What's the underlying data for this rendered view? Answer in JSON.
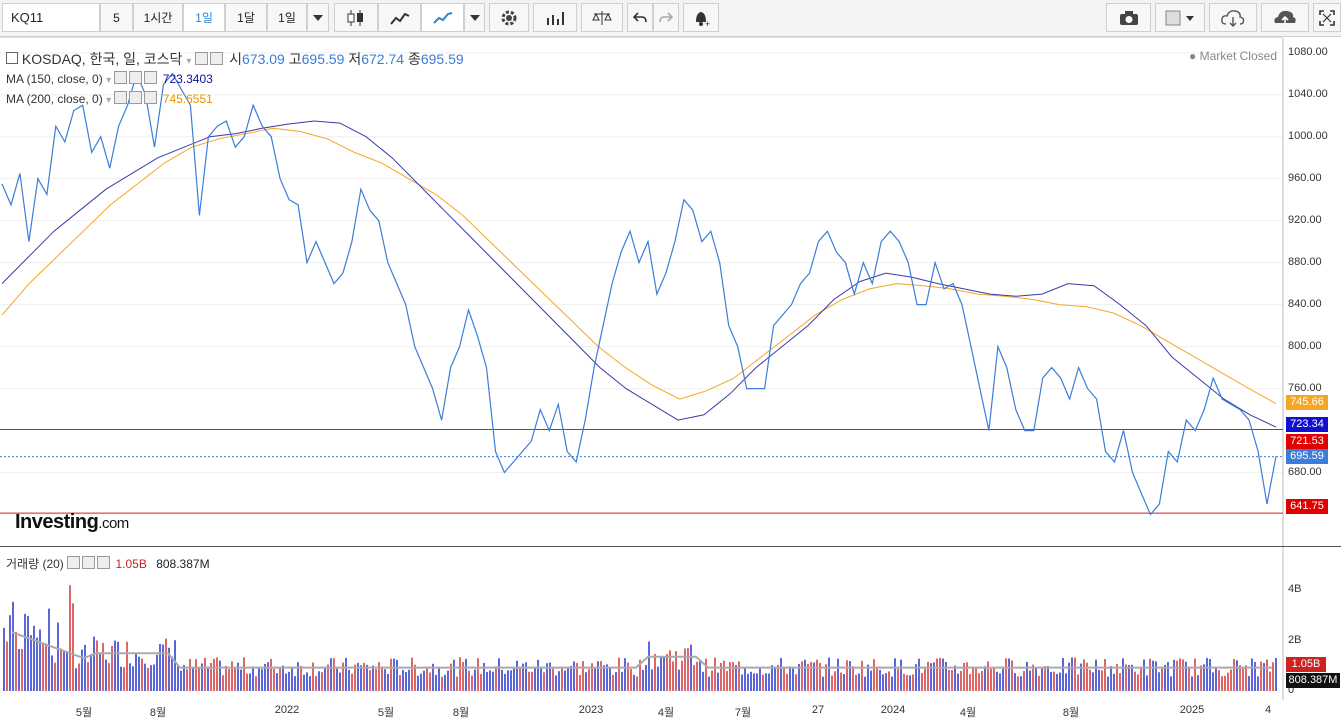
{
  "toolbar": {
    "symbol": "KQ11",
    "interval_5": "5",
    "interval_1h": "1시간",
    "interval_1d": "1일",
    "interval_1m": "1달",
    "interval_1d2": "1일"
  },
  "legend": {
    "title": "KOSDAQ, 한국, 일, 코스닥",
    "open_label": "시",
    "open": "673.09",
    "high_label": "고",
    "high": "695.59",
    "low_label": "저",
    "low": "672.74",
    "close_label": "종",
    "close": "695.59",
    "ma150_label": "MA (150, close, 0)",
    "ma150": "723.3403",
    "ma200_label": "MA (200, close, 0)",
    "ma200": "745.6551",
    "market_status": "Market Closed"
  },
  "volume_legend": {
    "label": "거래량 (20)",
    "value": "1.05B",
    "ma": "808.387M"
  },
  "logo": {
    "main": "Investing",
    "suffix": ".com"
  },
  "colors": {
    "price": "#3b7dd8",
    "ma150": "#3a3aa8",
    "ma200": "#f5a623",
    "line_red": "#d42020",
    "up": "#e06666",
    "down": "#5b67d8"
  },
  "chart_data": {
    "type": "line",
    "y_ticks": [
      1080,
      1040,
      1000,
      960,
      920,
      880,
      840,
      800,
      760,
      680
    ],
    "ylim": [
      610,
      1095
    ],
    "x_ticks": [
      "5월",
      "8월",
      "2022",
      "5월",
      "8월",
      "2023",
      "4월",
      "7월",
      "27",
      "2024",
      "4월",
      "8월",
      "2025",
      "4"
    ],
    "price_tags": {
      "ma200": "745.66",
      "ma150": "723.34",
      "hline1": "721.53",
      "last": "695.59",
      "hline2": "641.75"
    },
    "hlines": [
      721.53,
      641.75
    ],
    "series": [
      {
        "name": "KOSDAQ",
        "values": [
          955,
          935,
          965,
          900,
          960,
          945,
          1010,
          995,
          1025,
          1030,
          985,
          1000,
          970,
          1010,
          1030,
          1060,
          1040,
          990,
          1050,
          1060,
          1045,
          1030,
          925,
          1000,
          1010,
          1015,
          990,
          1000,
          1030,
          1010,
          1000,
          960,
          940,
          935,
          880,
          900,
          880,
          860,
          870,
          900,
          950,
          930,
          920,
          880,
          860,
          840,
          800,
          780,
          760,
          730,
          780,
          800,
          835,
          810,
          780,
          700,
          680,
          690,
          700,
          710,
          740,
          720,
          745,
          700,
          690,
          730,
          780,
          820,
          860,
          890,
          910,
          880,
          900,
          850,
          870,
          900,
          940,
          930,
          900,
          910,
          880,
          820,
          800,
          760,
          760,
          760,
          820,
          830,
          840,
          860,
          870,
          900,
          910,
          890,
          880,
          850,
          880,
          860,
          900,
          910,
          900,
          880,
          840,
          840,
          880,
          855,
          860,
          840,
          800,
          760,
          720,
          800,
          780,
          740,
          720,
          720,
          770,
          780,
          770,
          750,
          780,
          760,
          750,
          700,
          690,
          720,
          680,
          660,
          640,
          650,
          700,
          690,
          730,
          720,
          740,
          770,
          750,
          745,
          740,
          730,
          700,
          650,
          695.59
        ]
      },
      {
        "name": "MA (150, close, 0)",
        "values": [
          860,
          885,
          910,
          930,
          950,
          965,
          980,
          990,
          1000,
          1003,
          1008,
          1012,
          1015,
          1013,
          1000,
          980,
          955,
          930,
          905,
          880,
          855,
          830,
          805,
          780,
          760,
          745,
          730,
          735,
          755,
          780,
          800,
          820,
          845,
          862,
          870,
          866,
          860,
          855,
          850,
          848,
          850,
          860,
          858,
          840,
          820,
          790,
          770,
          750,
          735,
          723.3403
        ]
      },
      {
        "name": "MA (200, close, 0)",
        "values": [
          830,
          860,
          885,
          910,
          935,
          955,
          975,
          990,
          998,
          1003,
          1008,
          1005,
          998,
          985,
          975,
          960,
          945,
          925,
          900,
          875,
          850,
          825,
          800,
          780,
          763,
          750,
          758,
          770,
          790,
          810,
          830,
          845,
          855,
          860,
          858,
          855,
          850,
          848,
          845,
          840,
          838,
          832,
          820,
          805,
          790,
          775,
          760,
          745.6551
        ]
      }
    ]
  }
}
